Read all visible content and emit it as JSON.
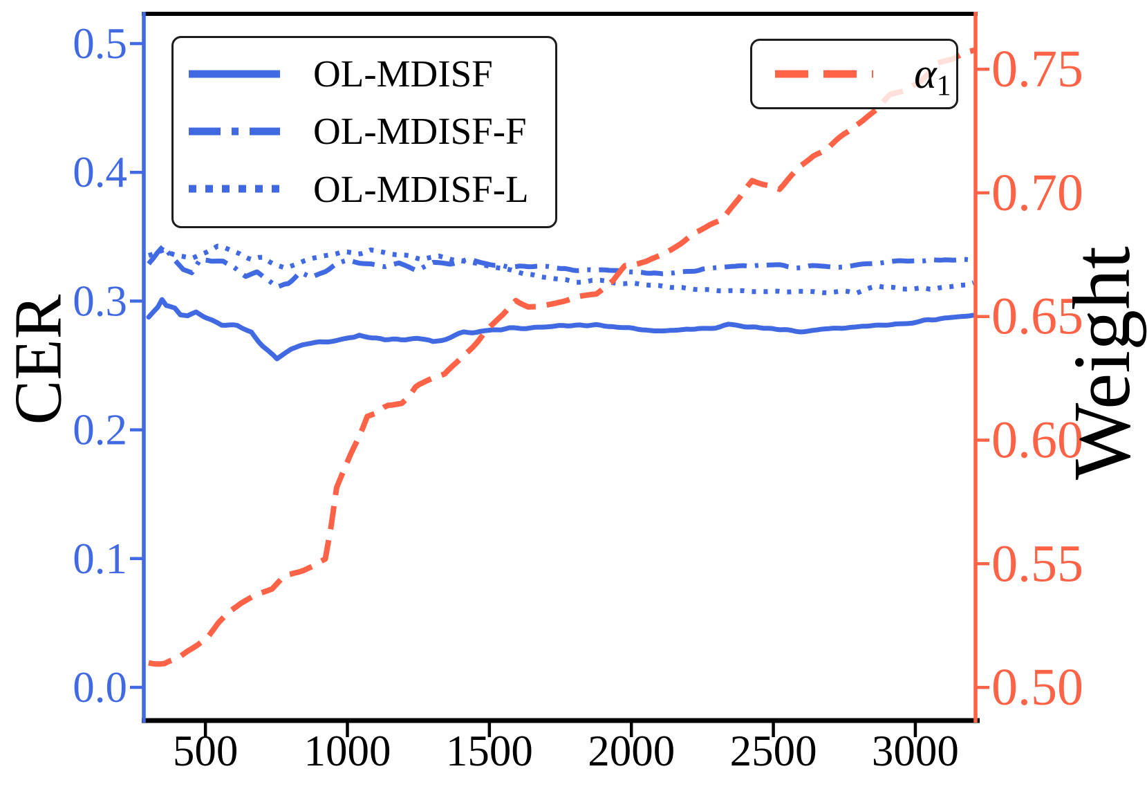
{
  "figure": {
    "background": "#ffffff"
  },
  "chart_data": {
    "type": "line",
    "title": "",
    "grid": false,
    "x_axis": {
      "label": "",
      "color": "#000000",
      "range": [
        283,
        3212
      ],
      "ticks": [
        {
          "v": 500,
          "label": "500"
        },
        {
          "v": 1000,
          "label": "1000"
        },
        {
          "v": 1500,
          "label": "1500"
        },
        {
          "v": 2000,
          "label": "2000"
        },
        {
          "v": 2500,
          "label": "2500"
        },
        {
          "v": 3000,
          "label": "3000"
        }
      ]
    },
    "y_left": {
      "label": "CER",
      "color": "#4169E1",
      "range": [
        -0.0258,
        0.5231
      ],
      "ticks": [
        {
          "v": 0.0,
          "label": "0.0"
        },
        {
          "v": 0.1,
          "label": "0.1"
        },
        {
          "v": 0.2,
          "label": "0.2"
        },
        {
          "v": 0.3,
          "label": "0.3"
        },
        {
          "v": 0.4,
          "label": "0.4"
        },
        {
          "v": 0.5,
          "label": "0.5"
        }
      ]
    },
    "y_right": {
      "label": "Weight",
      "color": "#FF6347",
      "range": [
        0.4866,
        0.7724
      ],
      "ticks": [
        {
          "v": 0.5,
          "label": "0.50"
        },
        {
          "v": 0.55,
          "label": "0.55"
        },
        {
          "v": 0.6,
          "label": "0.60"
        },
        {
          "v": 0.65,
          "label": "0.65"
        },
        {
          "v": 0.7,
          "label": "0.70"
        },
        {
          "v": 0.75,
          "label": "0.75"
        }
      ]
    },
    "legend_left": {
      "position": "upper-left"
    },
    "legend_right": {
      "position": "upper-right"
    },
    "series": [
      {
        "name": "OL-MDISF",
        "axis": "left",
        "style": "solid",
        "color": "#4169E1",
        "points": [
          [
            300,
            0.287
          ],
          [
            332,
            0.2955
          ],
          [
            347,
            0.302
          ],
          [
            362,
            0.2975
          ],
          [
            392,
            0.295
          ],
          [
            412,
            0.2895
          ],
          [
            437,
            0.288
          ],
          [
            467,
            0.291
          ],
          [
            507,
            0.287
          ],
          [
            557,
            0.282
          ],
          [
            612,
            0.281
          ],
          [
            662,
            0.276
          ],
          [
            702,
            0.265
          ],
          [
            737,
            0.2575
          ],
          [
            752,
            0.254
          ],
          [
            802,
            0.262
          ],
          [
            842,
            0.265
          ],
          [
            902,
            0.268
          ],
          [
            962,
            0.27
          ],
          [
            1022,
            0.272
          ],
          [
            1042,
            0.274
          ],
          [
            1132,
            0.2705
          ],
          [
            1247,
            0.27
          ],
          [
            1302,
            0.268
          ],
          [
            1410,
            0.275
          ],
          [
            1570,
            0.279
          ],
          [
            1732,
            0.28
          ],
          [
            1933,
            0.281
          ],
          [
            2052,
            0.278
          ],
          [
            2152,
            0.277
          ],
          [
            2252,
            0.279
          ],
          [
            2342,
            0.281
          ],
          [
            2452,
            0.28
          ],
          [
            2552,
            0.278
          ],
          [
            2652,
            0.277
          ],
          [
            2772,
            0.2795
          ],
          [
            2902,
            0.282
          ],
          [
            3002,
            0.284
          ],
          [
            3102,
            0.286
          ],
          [
            3205,
            0.288
          ]
        ]
      },
      {
        "name": "OL-MDISF-F",
        "axis": "left",
        "style": "dashdot",
        "color": "#4169E1",
        "points": [
          [
            300,
            0.33
          ],
          [
            332,
            0.338
          ],
          [
            352,
            0.3425
          ],
          [
            382,
            0.335
          ],
          [
            422,
            0.325
          ],
          [
            452,
            0.322
          ],
          [
            482,
            0.332
          ],
          [
            522,
            0.33
          ],
          [
            562,
            0.331
          ],
          [
            602,
            0.326
          ],
          [
            642,
            0.319
          ],
          [
            682,
            0.322
          ],
          [
            722,
            0.316
          ],
          [
            752,
            0.311
          ],
          [
            792,
            0.314
          ],
          [
            832,
            0.322
          ],
          [
            872,
            0.318
          ],
          [
            922,
            0.323
          ],
          [
            962,
            0.329
          ],
          [
            1002,
            0.332
          ],
          [
            1042,
            0.33
          ],
          [
            1082,
            0.329
          ],
          [
            1132,
            0.327
          ],
          [
            1182,
            0.33
          ],
          [
            1242,
            0.325
          ],
          [
            1302,
            0.33
          ],
          [
            1362,
            0.328
          ],
          [
            1422,
            0.331
          ],
          [
            1502,
            0.329
          ],
          [
            1562,
            0.327
          ],
          [
            1652,
            0.327
          ],
          [
            1752,
            0.325
          ],
          [
            1852,
            0.3245
          ],
          [
            1952,
            0.3235
          ],
          [
            2052,
            0.3225
          ],
          [
            2152,
            0.322
          ],
          [
            2252,
            0.325
          ],
          [
            2352,
            0.326
          ],
          [
            2452,
            0.328
          ],
          [
            2552,
            0.327
          ],
          [
            2682,
            0.3265
          ],
          [
            2772,
            0.327
          ],
          [
            2902,
            0.33
          ],
          [
            3002,
            0.331
          ],
          [
            3102,
            0.332
          ],
          [
            3205,
            0.331
          ]
        ]
      },
      {
        "name": "OL-MDISF-L",
        "axis": "left",
        "style": "dotted",
        "color": "#4169E1",
        "points": [
          [
            300,
            0.334
          ],
          [
            352,
            0.34
          ],
          [
            402,
            0.336
          ],
          [
            452,
            0.3335
          ],
          [
            502,
            0.338
          ],
          [
            542,
            0.3435
          ],
          [
            582,
            0.3395
          ],
          [
            622,
            0.336
          ],
          [
            662,
            0.332
          ],
          [
            702,
            0.3335
          ],
          [
            742,
            0.329
          ],
          [
            782,
            0.326
          ],
          [
            832,
            0.33
          ],
          [
            882,
            0.3335
          ],
          [
            932,
            0.336
          ],
          [
            982,
            0.3385
          ],
          [
            1032,
            0.337
          ],
          [
            1082,
            0.34
          ],
          [
            1142,
            0.337
          ],
          [
            1202,
            0.335
          ],
          [
            1262,
            0.333
          ],
          [
            1322,
            0.3345
          ],
          [
            1382,
            0.331
          ],
          [
            1442,
            0.3295
          ],
          [
            1502,
            0.3275
          ],
          [
            1562,
            0.325
          ],
          [
            1622,
            0.3215
          ],
          [
            1682,
            0.319
          ],
          [
            1742,
            0.3175
          ],
          [
            1802,
            0.3155
          ],
          [
            1862,
            0.3165
          ],
          [
            1922,
            0.3155
          ],
          [
            1977,
            0.3145
          ],
          [
            2052,
            0.3125
          ],
          [
            2152,
            0.31
          ],
          [
            2252,
            0.309
          ],
          [
            2352,
            0.3085
          ],
          [
            2462,
            0.308
          ],
          [
            2572,
            0.3075
          ],
          [
            2702,
            0.3075
          ],
          [
            2792,
            0.3065
          ],
          [
            2872,
            0.311
          ],
          [
            2952,
            0.3105
          ],
          [
            3052,
            0.3095
          ],
          [
            3122,
            0.311
          ],
          [
            3205,
            0.313
          ]
        ]
      },
      {
        "name": "alpha_1",
        "alpha_main": "α",
        "alpha_sub": "1",
        "axis": "right",
        "style": "dashed",
        "color": "#FF6347",
        "points": [
          [
            300,
            0.51
          ],
          [
            355,
            0.5095
          ],
          [
            405,
            0.512
          ],
          [
            455,
            0.516
          ],
          [
            505,
            0.52
          ],
          [
            545,
            0.5265
          ],
          [
            585,
            0.531
          ],
          [
            625,
            0.534
          ],
          [
            675,
            0.537
          ],
          [
            735,
            0.54
          ],
          [
            782,
            0.5455
          ],
          [
            830,
            0.547
          ],
          [
            880,
            0.549
          ],
          [
            922,
            0.552
          ],
          [
            942,
            0.565
          ],
          [
            962,
            0.581
          ],
          [
            1012,
            0.594
          ],
          [
            1040,
            0.601
          ],
          [
            1070,
            0.61
          ],
          [
            1103,
            0.611
          ],
          [
            1143,
            0.614
          ],
          [
            1191,
            0.615
          ],
          [
            1210,
            0.617
          ],
          [
            1240,
            0.6215
          ],
          [
            1281,
            0.624
          ],
          [
            1342,
            0.627
          ],
          [
            1400,
            0.633
          ],
          [
            1442,
            0.638
          ],
          [
            1480,
            0.643
          ],
          [
            1532,
            0.6495
          ],
          [
            1593,
            0.656
          ],
          [
            1637,
            0.6535
          ],
          [
            1680,
            0.654
          ],
          [
            1731,
            0.655
          ],
          [
            1812,
            0.6575
          ],
          [
            1877,
            0.659
          ],
          [
            1935,
            0.6645
          ],
          [
            1977,
            0.67
          ],
          [
            2055,
            0.672
          ],
          [
            2140,
            0.677
          ],
          [
            2220,
            0.684
          ],
          [
            2317,
            0.689
          ],
          [
            2380,
            0.698
          ],
          [
            2425,
            0.705
          ],
          [
            2522,
            0.7015
          ],
          [
            2590,
            0.71
          ],
          [
            2640,
            0.7145
          ],
          [
            2693,
            0.718
          ],
          [
            2750,
            0.724
          ],
          [
            2806,
            0.7285
          ],
          [
            2862,
            0.733
          ],
          [
            2911,
            0.7395
          ],
          [
            2960,
            0.741
          ],
          [
            3016,
            0.745
          ],
          [
            3075,
            0.752
          ],
          [
            3130,
            0.754
          ],
          [
            3180,
            0.757
          ],
          [
            3208,
            0.758
          ]
        ]
      }
    ]
  }
}
